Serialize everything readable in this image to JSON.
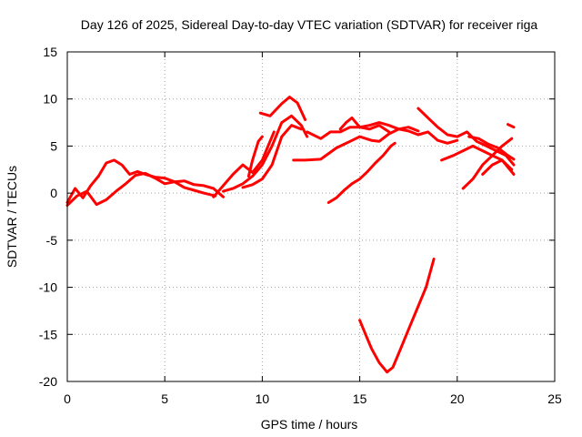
{
  "chart_data": {
    "type": "line",
    "title": "Day 126 of 2025, Sidereal Day-to-day VTEC variation (SDTVAR) for receiver riga",
    "xlabel": "GPS time / hours",
    "ylabel": "SDTVAR / TECUs",
    "xlim": [
      0,
      25
    ],
    "ylim": [
      -20,
      15
    ],
    "xticks": [
      0,
      5,
      10,
      15,
      20,
      25
    ],
    "yticks": [
      15,
      10,
      5,
      0,
      -5,
      -10,
      -15,
      -20
    ],
    "grid": true,
    "color": "#ff0000",
    "series": [
      {
        "name": "arc-1",
        "x": [
          0,
          0.4,
          0.8,
          1.2,
          1.6,
          2.0,
          2.4,
          2.8,
          3.2,
          3.6,
          4.0,
          4.5,
          5.0,
          5.5,
          6.0,
          6.5,
          7.0,
          7.5,
          8.0
        ],
        "y": [
          -1.0,
          0.5,
          -0.5,
          0.8,
          1.8,
          3.2,
          3.5,
          3.0,
          2.0,
          2.3,
          2.0,
          1.7,
          1.6,
          1.2,
          1.3,
          0.9,
          0.8,
          0.5,
          -0.4
        ]
      },
      {
        "name": "arc-2",
        "x": [
          0,
          0.5,
          1.0,
          1.5,
          2.0,
          2.5,
          3.0,
          3.5,
          4.0,
          4.5,
          5.0,
          5.5,
          6.0,
          6.5,
          7.0,
          7.6
        ],
        "y": [
          -1.3,
          -0.3,
          0.2,
          -1.2,
          -0.7,
          0.2,
          1.0,
          1.9,
          2.1,
          1.6,
          1.0,
          1.2,
          0.6,
          0.3,
          0.0,
          -0.3
        ]
      },
      {
        "name": "arc-3",
        "x": [
          7.5,
          8.0,
          8.5,
          9.0,
          9.5,
          10.0,
          10.3,
          10.6
        ],
        "y": [
          -0.4,
          0.8,
          2.0,
          3.0,
          2.2,
          3.5,
          5.0,
          6.5
        ]
      },
      {
        "name": "arc-4",
        "x": [
          8.0,
          8.5,
          9.0,
          9.5,
          10.0,
          10.5,
          11.0,
          11.5,
          12.0,
          12.3
        ],
        "y": [
          0.2,
          0.5,
          1.0,
          1.8,
          3.0,
          5.0,
          7.5,
          8.2,
          7.2,
          6.0
        ]
      },
      {
        "name": "arc-5",
        "x": [
          9.3,
          9.5,
          9.8,
          10.0
        ],
        "y": [
          1.8,
          3.5,
          5.5,
          6.0
        ]
      },
      {
        "name": "arc-6",
        "x": [
          9.0,
          9.5,
          10.0,
          10.5,
          11.0,
          11.5,
          12.0
        ],
        "y": [
          0.6,
          0.9,
          1.5,
          3.0,
          6.0,
          7.2,
          6.8
        ]
      },
      {
        "name": "arc-7",
        "x": [
          9.9,
          10.4,
          11.0,
          11.4,
          11.8,
          12.2
        ],
        "y": [
          8.5,
          8.2,
          9.5,
          10.2,
          9.6,
          7.8
        ]
      },
      {
        "name": "arc-8",
        "x": [
          11.6,
          12.2,
          13.0,
          13.8,
          14.5,
          15.0,
          15.6,
          16.0,
          16.5,
          17.0,
          17.5,
          18.0,
          18.5,
          19.0,
          19.5,
          20.0
        ],
        "y": [
          3.5,
          3.5,
          3.6,
          4.8,
          5.5,
          6.0,
          5.6,
          5.5,
          6.3,
          6.8,
          6.6,
          6.2,
          6.5,
          5.6,
          5.3,
          5.6
        ]
      },
      {
        "name": "arc-9",
        "x": [
          12.3,
          13.0,
          13.5,
          14.0,
          14.5,
          15.0,
          15.5,
          16.0,
          16.5,
          17.0,
          17.5,
          18.0
        ],
        "y": [
          6.5,
          5.8,
          6.5,
          6.5,
          7.0,
          7.0,
          7.2,
          7.5,
          7.2,
          6.8,
          7.0,
          6.6
        ]
      },
      {
        "name": "arc-10",
        "x": [
          14.0,
          14.3,
          14.6,
          15.0,
          15.5,
          16.0,
          16.5
        ],
        "y": [
          6.8,
          7.5,
          8.0,
          7.0,
          6.8,
          7.2,
          6.5
        ]
      },
      {
        "name": "arc-11",
        "x": [
          13.4,
          13.8,
          14.2,
          14.6,
          15.0,
          15.4,
          15.8,
          16.2,
          16.6,
          16.8
        ],
        "y": [
          -1.0,
          -0.5,
          0.3,
          1.0,
          1.5,
          2.3,
          3.2,
          4.0,
          5.0,
          5.3
        ]
      },
      {
        "name": "arc-12",
        "x": [
          15.0,
          15.3,
          15.6,
          16.0,
          16.4,
          16.7,
          17.0,
          17.5,
          18.0,
          18.4,
          18.8
        ],
        "y": [
          -13.5,
          -15.0,
          -16.5,
          -18.0,
          -19.0,
          -18.5,
          -17.0,
          -14.5,
          -12.0,
          -10.0,
          -7.0
        ]
      },
      {
        "name": "arc-13",
        "x": [
          18.0,
          18.5,
          19.0,
          19.5,
          20.0,
          20.5,
          21.0,
          21.5,
          22.0,
          22.5,
          22.9
        ],
        "y": [
          9.0,
          8.0,
          7.0,
          6.2,
          6.0,
          6.5,
          5.5,
          5.0,
          4.5,
          4.0,
          3.0
        ]
      },
      {
        "name": "arc-14",
        "x": [
          19.2,
          19.8,
          20.3,
          20.8,
          21.3,
          21.8,
          22.3,
          22.8
        ],
        "y": [
          3.5,
          4.0,
          4.5,
          5.0,
          4.5,
          4.0,
          3.5,
          2.5
        ]
      },
      {
        "name": "arc-15",
        "x": [
          20.3,
          20.8,
          21.3,
          21.8,
          22.3,
          22.8
        ],
        "y": [
          0.5,
          1.5,
          3.0,
          4.0,
          5.0,
          5.8
        ]
      },
      {
        "name": "arc-16",
        "x": [
          20.6,
          21.1,
          21.6,
          22.1,
          22.6,
          22.9
        ],
        "y": [
          6.0,
          5.8,
          5.2,
          4.8,
          4.0,
          3.6
        ]
      },
      {
        "name": "arc-17",
        "x": [
          21.3,
          21.8,
          22.3,
          22.9
        ],
        "y": [
          2.0,
          3.0,
          3.5,
          2.0
        ]
      },
      {
        "name": "arc-18",
        "x": [
          22.6,
          22.9
        ],
        "y": [
          7.3,
          7.0
        ]
      }
    ]
  }
}
